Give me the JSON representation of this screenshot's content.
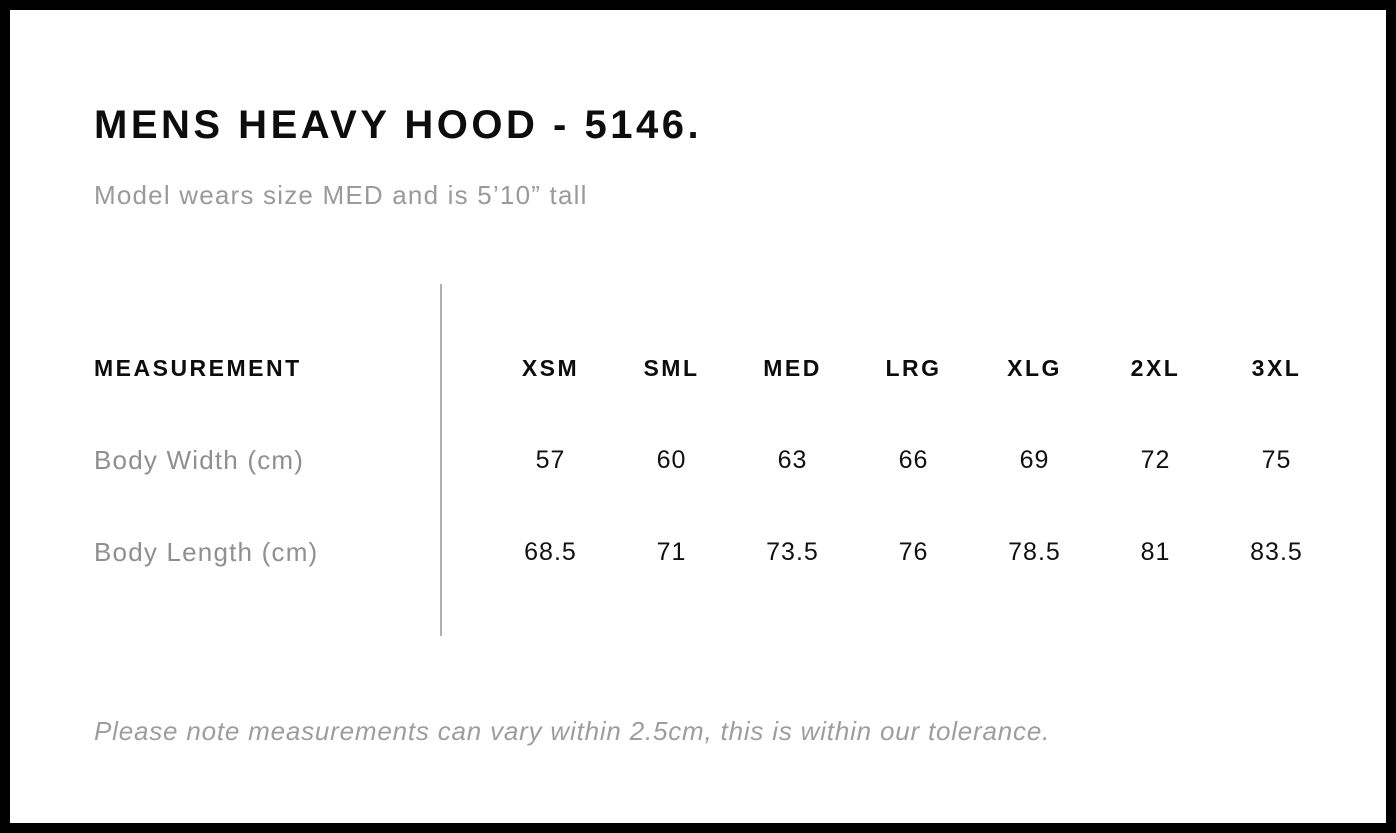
{
  "page": {
    "title": "MENS HEAVY HOOD - 5146.",
    "subtitle": "Model wears size MED and is 5’10” tall",
    "note": "Please note measurements can vary within 2.5cm, this is within our tolerance."
  },
  "table": {
    "measurement_header": "MEASUREMENT",
    "size_headers": [
      "XSM",
      "SML",
      "MED",
      "LRG",
      "XLG",
      "2XL",
      "3XL"
    ],
    "rows": [
      {
        "label": "Body Width (cm)",
        "values": [
          "57",
          "60",
          "63",
          "66",
          "69",
          "72",
          "75"
        ]
      },
      {
        "label": "Body Length (cm)",
        "values": [
          "68.5",
          "71",
          "73.5",
          "76",
          "78.5",
          "81",
          "83.5"
        ]
      }
    ]
  },
  "colors": {
    "frame": "#000000",
    "heading_text": "#0d0d0d",
    "muted_text": "#9a9a9a",
    "divider": "#b0b0b0"
  }
}
